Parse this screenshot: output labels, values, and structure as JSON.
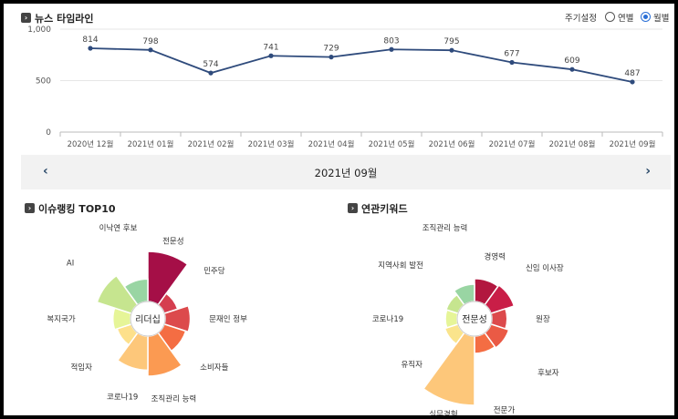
{
  "timeline": {
    "title": "뉴스 타임라인",
    "period_label": "주기설정",
    "options": [
      "연별",
      "월별"
    ],
    "selected": "월별"
  },
  "chart_data": [
    {
      "type": "line",
      "categories": [
        "2020년 12월",
        "2021년 01월",
        "2021년 02월",
        "2021년 03월",
        "2021년 04월",
        "2021년 05월",
        "2021년 06월",
        "2021년 07월",
        "2021년 08월",
        "2021년 09월"
      ],
      "values": [
        814,
        798,
        574,
        741,
        729,
        803,
        795,
        677,
        609,
        487
      ],
      "y_ticks": [
        "0",
        "500",
        "1,000"
      ],
      "ylim": [
        0,
        1000
      ],
      "grid": true,
      "color": "#2f4b7c"
    },
    {
      "type": "polar-area",
      "center_label": "리더십",
      "labels": [
        "전문성",
        "민주당",
        "문재인 정부",
        "소비자들",
        "조직관리 능력",
        "코로나19",
        "적임자",
        "복지국가",
        "AI",
        "이낙연 후보"
      ],
      "values": [
        100,
        28,
        50,
        45,
        80,
        68,
        30,
        35,
        72,
        45
      ],
      "colors": [
        "#a50f47",
        "#d53e4f",
        "#dc4a4c",
        "#f46d43",
        "#fb9a52",
        "#fdc77a",
        "#fde08b",
        "#e6f598",
        "#c6e58f",
        "#99d5a3"
      ]
    },
    {
      "type": "polar-area",
      "center_label": "전문성",
      "labels": [
        "경영력",
        "신임 이사장",
        "원장",
        "후보자",
        "전문가",
        "실무경험",
        "유직자",
        "코로나19",
        "지역사회 발전",
        "조직관리 능력"
      ],
      "values": [
        33,
        35,
        22,
        27,
        25,
        100,
        20,
        17,
        18,
        25
      ],
      "colors": [
        "#b2173f",
        "#c91e47",
        "#dc4a4c",
        "#ea5a45",
        "#f46d43",
        "#fdc77a",
        "#fae48c",
        "#e6f598",
        "#c6e58f",
        "#99d5a3"
      ]
    }
  ],
  "nav": {
    "prev": "‹",
    "month": "2021년 09월",
    "next": "›"
  },
  "issues": {
    "title": "이슈랭킹 TOP10"
  },
  "keywords": {
    "title": "연관키워드"
  },
  "icon_glyph": "›"
}
